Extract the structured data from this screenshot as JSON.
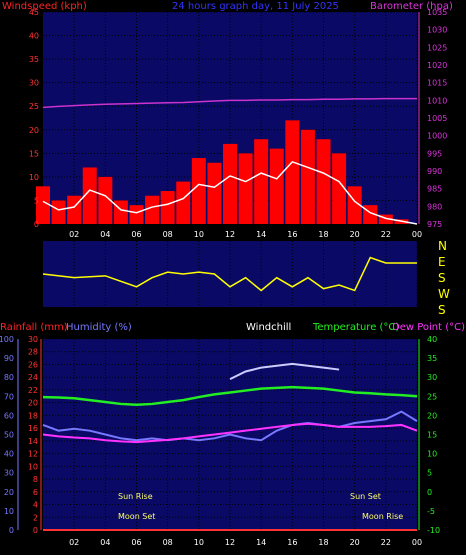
{
  "panel1": {
    "windspeed_label": "Windspeed (kph)",
    "title": "24 hours graph day, 11 July 2025",
    "barometer_label": "Barometer (hpa)",
    "wind_ticks": [
      "0",
      "5",
      "10",
      "15",
      "20",
      "25",
      "30",
      "35",
      "40",
      "45"
    ],
    "baro_ticks": [
      "975",
      "980",
      "985",
      "990",
      "995",
      "1000",
      "1005",
      "1010",
      "1015",
      "1020",
      "1025",
      "1030",
      "1035"
    ]
  },
  "panel2": {
    "compass": [
      "N",
      "E",
      "S",
      "W",
      "S"
    ]
  },
  "panel3": {
    "rain_label": "Rainfall (mm)",
    "humidity_label": "Humidity (%)",
    "windchill_label": "Windchill",
    "temp_label": "Temperature (°C)",
    "dew_label": "Dew Point (°C)",
    "hum_ticks": [
      "0",
      "10",
      "20",
      "30",
      "40",
      "50",
      "60",
      "70",
      "80",
      "90",
      "100"
    ],
    "rain_ticks": [
      "0",
      "2",
      "4",
      "6",
      "8",
      "10",
      "12",
      "14",
      "16",
      "18",
      "20",
      "22",
      "24",
      "26",
      "28",
      "30"
    ],
    "temp_ticks": [
      "-10",
      "-5",
      "0",
      "5",
      "10",
      "15",
      "20",
      "25",
      "30",
      "35",
      "40"
    ],
    "events": {
      "sunrise": "Sun Rise",
      "moonset": "Moon Set",
      "sunset": "Sun Set",
      "moonrise": "Moon Rise"
    }
  },
  "x_ticks": [
    "02",
    "04",
    "06",
    "08",
    "10",
    "12",
    "14",
    "16",
    "18",
    "20",
    "22",
    "00"
  ],
  "colors": {
    "panel_bg": "#0a0a66",
    "gust": "#ff0000",
    "avg_wind": "#ffffff",
    "wind_dir": "#ffff00",
    "barometer": "#cc33cc",
    "temperature": "#22ee22",
    "windchill": "#ccccff",
    "humidity": "#7777ff",
    "dew_point": "#ff33ff",
    "rainfall": "#ff3333"
  },
  "chart_data": [
    {
      "type": "area",
      "x_hours": [
        0,
        1,
        2,
        3,
        4,
        5,
        6,
        7,
        8,
        9,
        10,
        11,
        12,
        13,
        14,
        15,
        16,
        17,
        18,
        19,
        20,
        21,
        22,
        23,
        24
      ],
      "xlabel_ticks": [
        "02",
        "04",
        "06",
        "08",
        "10",
        "12",
        "14",
        "16",
        "18",
        "20",
        "22",
        "00"
      ],
      "ylim_left": [
        0,
        45
      ],
      "ylim_right": [
        975,
        1035
      ],
      "series": [
        {
          "name": "Windspeed (kph)",
          "axis": "left",
          "values": [
            8,
            5,
            6,
            12,
            10,
            5,
            4,
            6,
            7,
            9,
            14,
            13,
            17,
            15,
            18,
            16,
            22,
            20,
            18,
            15,
            8,
            4,
            2,
            1,
            0
          ]
        },
        {
          "name": "Barometer (hpa)",
          "axis": "right",
          "values": [
            1008,
            1008.3,
            1008.5,
            1008.7,
            1008.9,
            1009,
            1009.1,
            1009.2,
            1009.3,
            1009.4,
            1009.6,
            1009.8,
            1010,
            1010,
            1010.1,
            1010.1,
            1010.2,
            1010.2,
            1010.3,
            1010.3,
            1010.4,
            1010.4,
            1010.5,
            1010.5,
            1010.5
          ]
        }
      ]
    },
    {
      "type": "line",
      "x_hours": [
        0,
        2,
        4,
        6,
        7,
        8,
        9,
        10,
        11,
        12,
        13,
        14,
        15,
        16,
        17,
        18,
        19,
        20,
        21,
        22,
        23,
        24
      ],
      "compass": [
        "N",
        "E",
        "S",
        "W",
        "S"
      ],
      "series": [
        {
          "name": "Wind direction",
          "values": [
            180,
            200,
            190,
            250,
            200,
            170,
            180,
            170,
            180,
            250,
            200,
            270,
            200,
            250,
            200,
            260,
            240,
            270,
            90,
            120,
            120,
            120
          ]
        }
      ]
    },
    {
      "type": "line",
      "x_hours": [
        0,
        1,
        2,
        3,
        4,
        5,
        6,
        7,
        8,
        9,
        10,
        11,
        12,
        13,
        14,
        15,
        16,
        17,
        18,
        19,
        20,
        21,
        22,
        23,
        24
      ],
      "ylim_humidity": [
        0,
        100
      ],
      "ylim_rain": [
        0,
        30
      ],
      "ylim_temp": [
        -10,
        40
      ],
      "series": [
        {
          "name": "Temperature",
          "axis": "temp",
          "values": [
            24.8,
            24.7,
            24.5,
            24,
            23.5,
            23,
            22.8,
            23,
            23.5,
            24,
            24.8,
            25.5,
            26,
            26.5,
            27,
            27.2,
            27.4,
            27.2,
            27,
            26.5,
            26,
            25.8,
            25.5,
            25.3,
            25
          ]
        },
        {
          "name": "Windchill",
          "axis": "temp",
          "values": [
            null,
            null,
            null,
            null,
            null,
            null,
            null,
            null,
            null,
            null,
            null,
            null,
            29.5,
            31.5,
            32.5,
            33,
            33.5,
            33,
            32.5,
            32,
            null,
            null,
            null,
            null,
            null
          ]
        },
        {
          "name": "Humidity",
          "axis": "humidity",
          "values": [
            55,
            52,
            53,
            52,
            50,
            48,
            47,
            48,
            47,
            48,
            47,
            48,
            50,
            48,
            47,
            52,
            55,
            56,
            55,
            54,
            56,
            57,
            58,
            62,
            57
          ]
        },
        {
          "name": "Dew Point",
          "axis": "temp",
          "values": [
            15,
            14.5,
            14.2,
            14,
            13.5,
            13.2,
            13,
            13.3,
            13.6,
            14,
            14.5,
            15,
            15.5,
            16,
            16.5,
            17,
            17.5,
            17.8,
            17.5,
            17,
            17,
            17,
            17.2,
            17.5,
            16
          ]
        },
        {
          "name": "Rainfall",
          "axis": "rain",
          "values": [
            0,
            0,
            0,
            0,
            0,
            0,
            0,
            0,
            0,
            0,
            0,
            0,
            0,
            0,
            0,
            0,
            0,
            0,
            0,
            0,
            0,
            0,
            0,
            0,
            0
          ]
        }
      ]
    }
  ]
}
